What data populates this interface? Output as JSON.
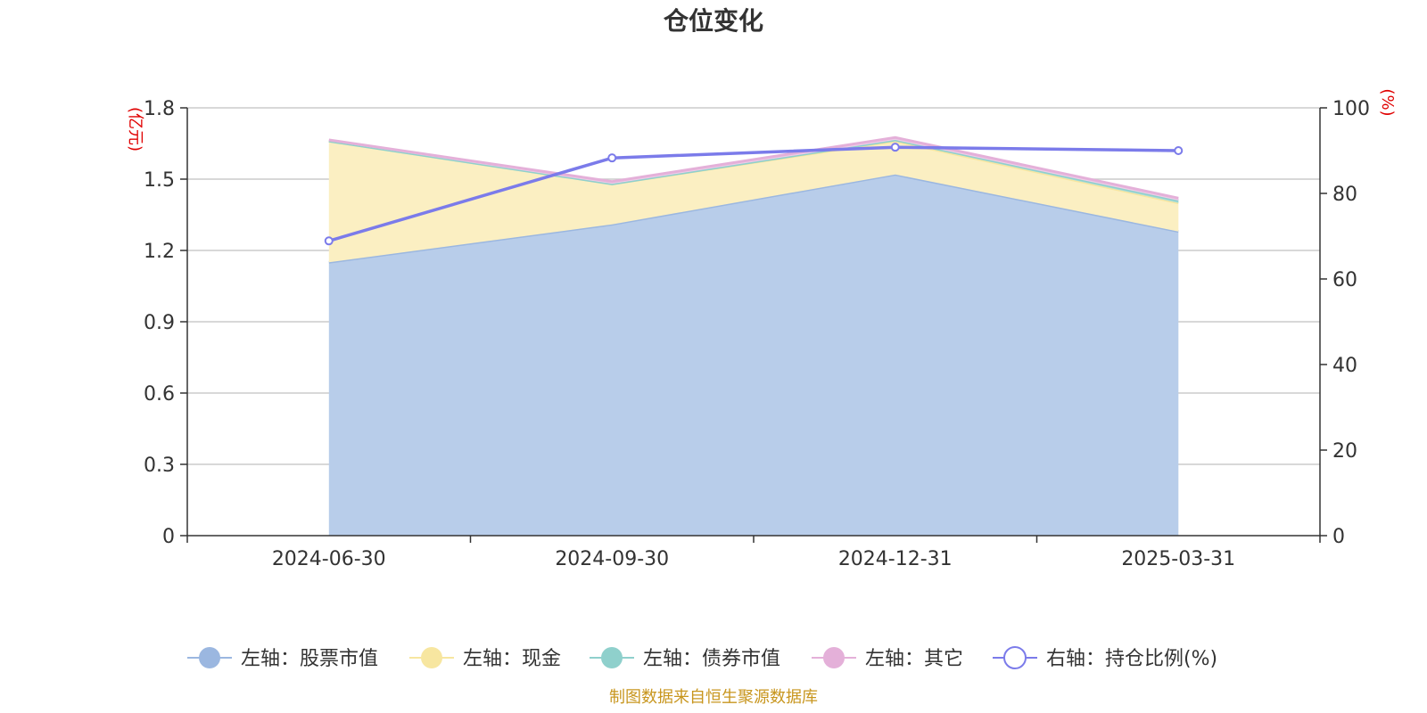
{
  "chart_data": {
    "type": "area",
    "title": "仓位变化",
    "categories": [
      "2024-06-30",
      "2024-09-30",
      "2024-12-31",
      "2025-03-31"
    ],
    "left_axis": {
      "unit": "(亿元)",
      "ylim": [
        0,
        1.8
      ],
      "ticks": [
        "0",
        "0.3",
        "0.6",
        "0.9",
        "1.2",
        "1.5",
        "1.8"
      ]
    },
    "right_axis": {
      "unit": "(%)",
      "ylim": [
        0,
        100
      ],
      "ticks": [
        "0",
        "20",
        "40",
        "60",
        "80",
        "100"
      ]
    },
    "series": [
      {
        "name": "左轴：股票市值",
        "axis": "left",
        "kind": "area",
        "color": "#9bb7e0",
        "fill": "#b8cdea",
        "values": [
          1.15,
          1.31,
          1.52,
          1.28
        ]
      },
      {
        "name": "左轴：现金",
        "axis": "left",
        "kind": "area",
        "color": "#f7e6a0",
        "fill": "#fbefc2",
        "values": [
          0.51,
          0.17,
          0.14,
          0.12
        ]
      },
      {
        "name": "左轴：债券市值",
        "axis": "left",
        "kind": "area",
        "color": "#8fd0cc",
        "fill": "#a9dcd8",
        "values": [
          0.0,
          0.0,
          0.005,
          0.01
        ]
      },
      {
        "name": "左轴：其它",
        "axis": "left",
        "kind": "area",
        "color": "#e4b0d9",
        "fill": "#efcde8",
        "values": [
          0.005,
          0.01,
          0.01,
          0.01
        ]
      },
      {
        "name": "右轴：持仓比例(%)",
        "axis": "right",
        "kind": "line",
        "color": "#7b7bea",
        "values": [
          68.9,
          88.3,
          90.8,
          90.0
        ]
      }
    ],
    "grid": true,
    "legend_position": "bottom"
  },
  "source_note": "制图数据来自恒生聚源数据库"
}
